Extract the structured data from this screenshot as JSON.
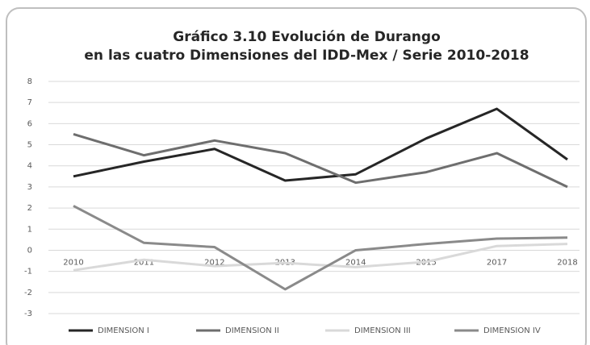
{
  "chart_data": {
    "type": "line",
    "title": [
      "Gráfico 3.10 Evolución de Durango",
      "en las cuatro Dimensiones del IDD-Mex / Serie 2010-2018"
    ],
    "categories": [
      "2010",
      "2011",
      "2012",
      "2013",
      "2014",
      "2015",
      "2017",
      "2018"
    ],
    "series": [
      {
        "name": "DIMENSION I",
        "color": "#262626",
        "values": [
          3.5,
          4.2,
          4.8,
          3.3,
          3.6,
          5.3,
          6.7,
          4.3
        ]
      },
      {
        "name": "DIMENSION II",
        "color": "#6e6e6e",
        "values": [
          5.5,
          4.5,
          5.2,
          4.6,
          3.2,
          3.7,
          4.6,
          3.0
        ]
      },
      {
        "name": "DIMENSION III",
        "color": "#d9d9d9",
        "values": [
          -0.95,
          -0.45,
          -0.75,
          -0.6,
          -0.8,
          -0.55,
          0.2,
          0.3
        ]
      },
      {
        "name": "DIMENSION IV",
        "color": "#8a8a8a",
        "values": [
          2.1,
          0.35,
          0.15,
          -1.85,
          0.0,
          0.3,
          0.55,
          0.6
        ]
      }
    ],
    "ylim": [
      -3,
      8
    ],
    "yticks": [
      -3,
      -2,
      -1,
      0,
      1,
      2,
      3,
      4,
      5,
      6,
      7,
      8
    ],
    "grid": true,
    "legend": "bottom"
  }
}
